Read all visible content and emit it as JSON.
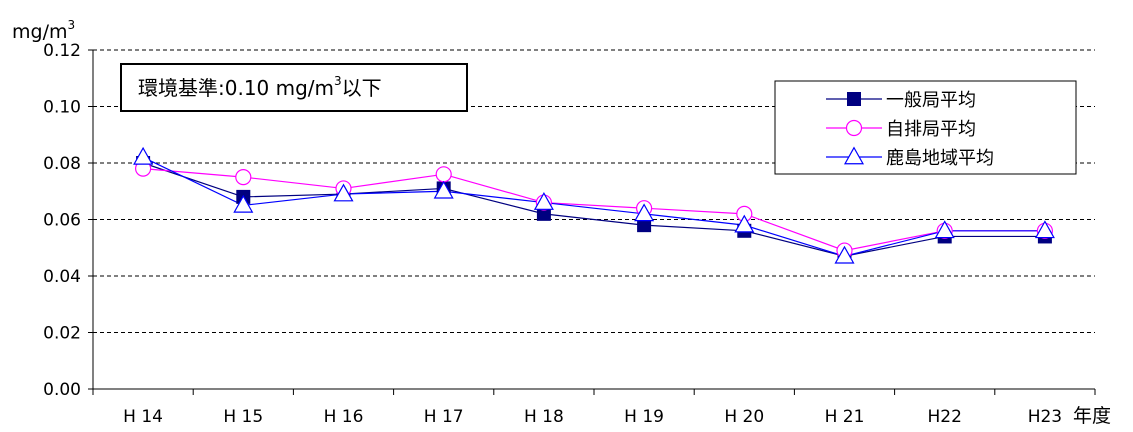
{
  "chart_data": {
    "type": "line",
    "categories": [
      "H 14",
      "H 15",
      "H 16",
      "H 17",
      "H 18",
      "H 19",
      "H 20",
      "H 21",
      "H22",
      "H23"
    ],
    "series": [
      {
        "name": "一般局平均",
        "color": "#000080",
        "marker": "filled-square",
        "values": [
          0.08,
          0.068,
          0.069,
          0.071,
          0.062,
          0.058,
          0.056,
          0.047,
          0.054,
          0.054
        ]
      },
      {
        "name": "自排局平均",
        "color": "#ff00ff",
        "marker": "open-circle",
        "values": [
          0.078,
          0.075,
          0.071,
          0.076,
          0.066,
          0.064,
          0.062,
          0.049,
          0.056,
          0.056
        ]
      },
      {
        "name": "鹿島地域平均",
        "color": "#0000ff",
        "marker": "open-triangle",
        "values": [
          0.082,
          0.065,
          0.069,
          0.07,
          0.066,
          0.062,
          0.058,
          0.047,
          0.056,
          0.056
        ]
      }
    ],
    "ylim": [
      0,
      0.12
    ],
    "yticks": [
      "0.00",
      "0.02",
      "0.04",
      "0.06",
      "0.08",
      "0.10",
      "0.12"
    ],
    "ylabel": "mg/m",
    "ylabel_sup": "3",
    "xlabel": "年度",
    "grid": "horizontal dashed",
    "legend_position": "top-right",
    "annotation": {
      "prefix": "環境基準:0.10 mg/m",
      "sup": "3",
      "suffix": "以下"
    }
  }
}
